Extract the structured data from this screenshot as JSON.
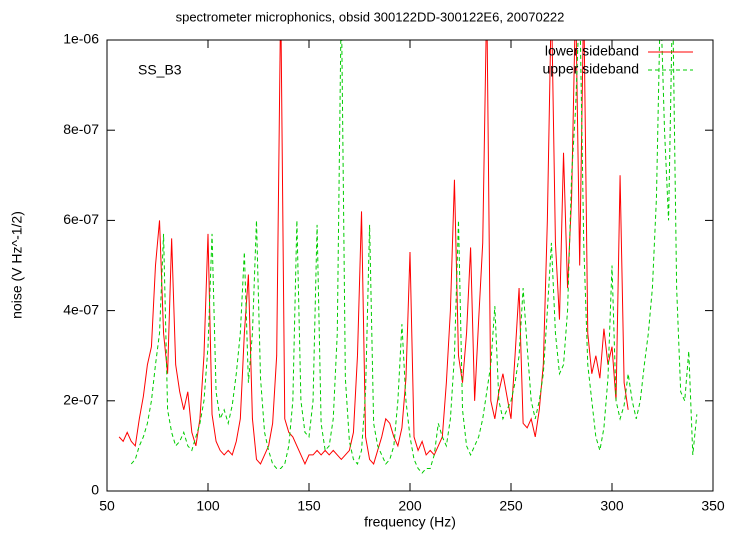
{
  "chart_data": {
    "type": "line",
    "title": "spectrometer microphonics, obsid 300122DD-300122E6, 20070222",
    "x_label": "frequency (Hz)",
    "y_label": "noise (V Hz^-1/2)",
    "annotation": "SS_B3",
    "xlim": [
      50,
      350
    ],
    "ylim": [
      0,
      1e-06
    ],
    "xticks": [
      50,
      100,
      150,
      200,
      250,
      300,
      350
    ],
    "yticks": [
      0,
      {
        "value": 2e-07,
        "label": "2e-07"
      },
      {
        "value": 4e-07,
        "label": "4e-07"
      },
      {
        "value": 6e-07,
        "label": "6e-07"
      },
      {
        "value": 8e-07,
        "label": "8e-07"
      },
      {
        "value": 1e-06,
        "label": "1e-06"
      }
    ],
    "legend": "top-right",
    "x": [
      56,
      58,
      60,
      62,
      64,
      66,
      68,
      70,
      72,
      74,
      76,
      78,
      80,
      82,
      84,
      86,
      88,
      90,
      92,
      94,
      96,
      98,
      100,
      102,
      104,
      106,
      108,
      110,
      112,
      114,
      116,
      118,
      120,
      122,
      124,
      126,
      128,
      130,
      132,
      134,
      136,
      138,
      140,
      142,
      144,
      146,
      148,
      150,
      152,
      154,
      156,
      158,
      160,
      162,
      164,
      166,
      168,
      170,
      172,
      174,
      176,
      178,
      180,
      182,
      184,
      186,
      188,
      190,
      192,
      194,
      196,
      198,
      200,
      202,
      204,
      206,
      208,
      210,
      212,
      214,
      216,
      218,
      220,
      222,
      224,
      226,
      228,
      230,
      232,
      234,
      236,
      238,
      240,
      242,
      244,
      246,
      248,
      250,
      252,
      254,
      256,
      258,
      260,
      262,
      264,
      266,
      268,
      270,
      272,
      274,
      276,
      278,
      280,
      282,
      284,
      286,
      288,
      290,
      292,
      294,
      296,
      298,
      300,
      302,
      304,
      306,
      308,
      310,
      312,
      314,
      316,
      318,
      320,
      322,
      324,
      326,
      328,
      330,
      332,
      334,
      336,
      338,
      340,
      342
    ],
    "series": [
      {
        "name": "lower sideband",
        "color": "#ff0000",
        "dashed": false,
        "values": [
          1.2e-07,
          1.1e-07,
          1.3e-07,
          1.1e-07,
          1e-07,
          1.6e-07,
          2.1e-07,
          2.8e-07,
          3.2e-07,
          5e-07,
          6e-07,
          3.5e-07,
          2.6e-07,
          5.6e-07,
          2.8e-07,
          2.2e-07,
          1.8e-07,
          2.2e-07,
          1.3e-07,
          1e-07,
          1.6e-07,
          3e-07,
          5.7e-07,
          1.7e-07,
          1.1e-07,
          9e-08,
          8e-08,
          9e-08,
          8e-08,
          1.1e-07,
          1.6e-07,
          3.5e-07,
          4.8e-07,
          1.6e-07,
          7e-08,
          6e-08,
          8e-08,
          1e-07,
          1.5e-07,
          3e-07,
          1.1e-06,
          1.6e-07,
          1.3e-07,
          1.2e-07,
          1e-07,
          8e-08,
          6e-08,
          8e-08,
          8e-08,
          9e-08,
          8e-08,
          9e-08,
          8e-08,
          9e-08,
          8e-08,
          7e-08,
          8e-08,
          9e-08,
          1.3e-07,
          3e-07,
          6.2e-07,
          1.2e-07,
          7e-08,
          6e-08,
          9e-08,
          1.2e-07,
          1.6e-07,
          1.5e-07,
          1.2e-07,
          1e-07,
          1.4e-07,
          2.5e-07,
          5.3e-07,
          1.2e-07,
          9e-08,
          1.1e-07,
          8e-08,
          9e-08,
          8e-08,
          1e-07,
          1.2e-07,
          2.4e-07,
          4e-07,
          6.9e-07,
          3e-07,
          2.4e-07,
          3.5e-07,
          5.4e-07,
          2e-07,
          3.8e-07,
          5.5e-07,
          1.1e-06,
          2e-07,
          1.6e-07,
          2.2e-07,
          2.6e-07,
          2.1e-07,
          1.6e-07,
          3e-07,
          4.5e-07,
          1.5e-07,
          1.4e-07,
          1.6e-07,
          1.2e-07,
          1.8e-07,
          2.8e-07,
          6e-07,
          1.1e-06,
          5.5e-07,
          3.8e-07,
          7.5e-07,
          4.5e-07,
          6.5e-07,
          1.1e-06,
          5e-07,
          1.1e-06,
          3.5e-07,
          2.6e-07,
          3e-07,
          2.5e-07,
          3.6e-07,
          2.8e-07,
          3.2e-07,
          2e-07,
          7e-07,
          2.4e-07,
          1.8e-07,
          null,
          null,
          null,
          null,
          null,
          null,
          null,
          null,
          null,
          null,
          null,
          null,
          null,
          null,
          null,
          null,
          null
        ]
      },
      {
        "name": "upper sideband",
        "color": "#00cc00",
        "dashed": true,
        "values": [
          null,
          null,
          null,
          6e-08,
          7e-08,
          1e-07,
          1.2e-07,
          1.5e-07,
          2e-07,
          2.8e-07,
          3.5e-07,
          5.7e-07,
          1.8e-07,
          1.3e-07,
          1e-07,
          1.1e-07,
          1.3e-07,
          1e-07,
          9e-08,
          1.2e-07,
          1.5e-07,
          2e-07,
          3.2e-07,
          5.7e-07,
          2.2e-07,
          1.6e-07,
          1.8e-07,
          1.5e-07,
          1.9e-07,
          2.6e-07,
          3.5e-07,
          5.3e-07,
          2.4e-07,
          3.5e-07,
          6e-07,
          2.5e-07,
          1.3e-07,
          9e-08,
          6e-08,
          5e-08,
          5e-08,
          6e-08,
          1e-07,
          2e-07,
          6e-07,
          2e-07,
          1.3e-07,
          1.2e-07,
          2e-07,
          5.9e-07,
          1.5e-07,
          9e-08,
          1e-07,
          1.6e-07,
          3.5e-07,
          1.1e-06,
          2.5e-07,
          1.1e-07,
          7e-08,
          6e-08,
          9e-08,
          2.2e-07,
          5.9e-07,
          1.5e-07,
          1e-07,
          8e-08,
          6e-08,
          7e-08,
          1e-07,
          2e-07,
          3.7e-07,
          2e-07,
          1.2e-07,
          7e-08,
          5e-08,
          4e-08,
          5e-08,
          5e-08,
          8e-08,
          1.5e-07,
          1.2e-07,
          1e-07,
          1.6e-07,
          3e-07,
          6e-07,
          1.8e-07,
          1e-07,
          8e-08,
          1e-07,
          1.2e-07,
          1.6e-07,
          2.2e-07,
          2.8e-07,
          4.1e-07,
          2e-07,
          1.6e-07,
          1.8e-07,
          2e-07,
          2.4e-07,
          3e-07,
          4.5e-07,
          3.2e-07,
          2e-07,
          1.6e-07,
          2e-07,
          2.6e-07,
          4e-07,
          5.5e-07,
          3.5e-07,
          2.6e-07,
          2.8e-07,
          4e-07,
          7e-07,
          8.5e-07,
          1.1e-06,
          5.5e-07,
          2.8e-07,
          2e-07,
          1.2e-07,
          9e-08,
          1.4e-07,
          2.5e-07,
          5e-07,
          2e-07,
          1.6e-07,
          1.9e-07,
          2.6e-07,
          2e-07,
          1.6e-07,
          2e-07,
          2.8e-07,
          3.5e-07,
          4.5e-07,
          6.5e-07,
          1.1e-06,
          8e-07,
          6e-07,
          1.1e-06,
          4.5e-07,
          2.2e-07,
          2e-07,
          3.1e-07,
          8e-08,
          1.7e-07
        ]
      }
    ]
  }
}
